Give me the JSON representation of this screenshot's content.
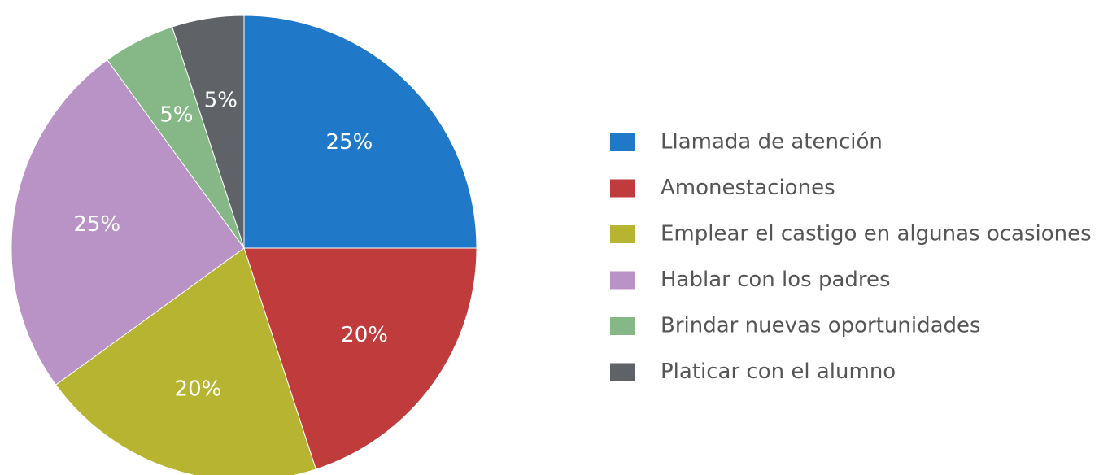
{
  "chart_data": {
    "type": "pie",
    "categories": [
      "Llamada de atención",
      "Amonestaciones",
      "Emplear el castigo en algunas ocasiones",
      "Hablar con los padres",
      "Brindar nuevas oportunidades",
      "Platicar con el alumno"
    ],
    "values": [
      25,
      20,
      20,
      25,
      5,
      5
    ],
    "value_labels": [
      "25%",
      "20%",
      "20%",
      "25%",
      "5%",
      "5%"
    ],
    "colors": [
      "#1f78c8",
      "#c03b3c",
      "#b7b431",
      "#b993c6",
      "#86b887",
      "#5f6367"
    ],
    "legend": "right"
  }
}
